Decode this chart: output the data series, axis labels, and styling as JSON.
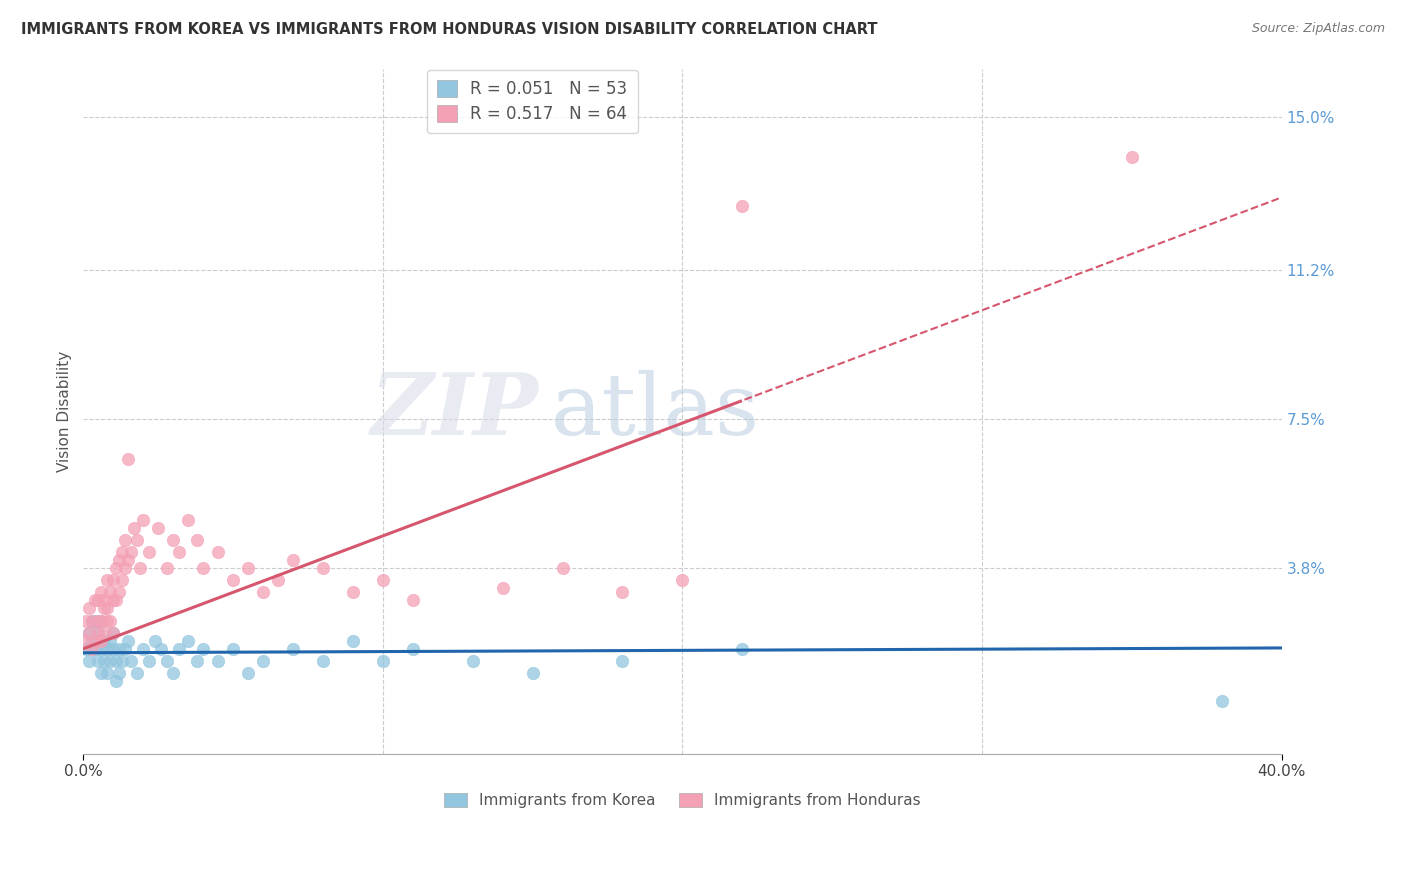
{
  "title": "IMMIGRANTS FROM KOREA VS IMMIGRANTS FROM HONDURAS VISION DISABILITY CORRELATION CHART",
  "source": "Source: ZipAtlas.com",
  "ylabel": "Vision Disability",
  "ytick_values": [
    0.038,
    0.075,
    0.112,
    0.15
  ],
  "ytick_labels": [
    "3.8%",
    "7.5%",
    "11.2%",
    "15.0%"
  ],
  "xlim": [
    0.0,
    0.4
  ],
  "ylim": [
    -0.008,
    0.162
  ],
  "korea_color": "#92c5de",
  "honduras_color": "#f4a0b5",
  "korea_trend_color": "#2166ac",
  "honduras_trend_color": "#d6566e",
  "korea_R": 0.051,
  "korea_N": 53,
  "honduras_R": 0.517,
  "honduras_N": 64,
  "watermark_zip": "ZIP",
  "watermark_atlas": "atlas",
  "legend_label_korea": "Immigrants from Korea",
  "legend_label_honduras": "Immigrants from Honduras",
  "korea_x": [
    0.001,
    0.002,
    0.002,
    0.003,
    0.003,
    0.004,
    0.004,
    0.005,
    0.005,
    0.006,
    0.006,
    0.006,
    0.007,
    0.007,
    0.008,
    0.008,
    0.009,
    0.009,
    0.01,
    0.01,
    0.011,
    0.011,
    0.012,
    0.012,
    0.013,
    0.014,
    0.015,
    0.016,
    0.018,
    0.02,
    0.022,
    0.024,
    0.026,
    0.028,
    0.03,
    0.032,
    0.035,
    0.038,
    0.04,
    0.045,
    0.05,
    0.055,
    0.06,
    0.07,
    0.08,
    0.09,
    0.1,
    0.11,
    0.13,
    0.15,
    0.18,
    0.22,
    0.38
  ],
  "korea_y": [
    0.018,
    0.022,
    0.015,
    0.025,
    0.02,
    0.018,
    0.025,
    0.015,
    0.022,
    0.018,
    0.012,
    0.025,
    0.015,
    0.02,
    0.018,
    0.012,
    0.02,
    0.015,
    0.018,
    0.022,
    0.015,
    0.01,
    0.018,
    0.012,
    0.015,
    0.018,
    0.02,
    0.015,
    0.012,
    0.018,
    0.015,
    0.02,
    0.018,
    0.015,
    0.012,
    0.018,
    0.02,
    0.015,
    0.018,
    0.015,
    0.018,
    0.012,
    0.015,
    0.018,
    0.015,
    0.02,
    0.015,
    0.018,
    0.015,
    0.012,
    0.015,
    0.018,
    0.005
  ],
  "honduras_x": [
    0.001,
    0.001,
    0.002,
    0.002,
    0.003,
    0.003,
    0.004,
    0.004,
    0.005,
    0.005,
    0.005,
    0.006,
    0.006,
    0.006,
    0.007,
    0.007,
    0.007,
    0.008,
    0.008,
    0.008,
    0.009,
    0.009,
    0.01,
    0.01,
    0.01,
    0.011,
    0.011,
    0.012,
    0.012,
    0.013,
    0.013,
    0.014,
    0.014,
    0.015,
    0.015,
    0.016,
    0.017,
    0.018,
    0.019,
    0.02,
    0.022,
    0.025,
    0.028,
    0.03,
    0.032,
    0.035,
    0.038,
    0.04,
    0.045,
    0.05,
    0.055,
    0.06,
    0.065,
    0.07,
    0.08,
    0.09,
    0.1,
    0.11,
    0.14,
    0.16,
    0.18,
    0.2,
    0.22,
    0.35
  ],
  "honduras_y": [
    0.02,
    0.025,
    0.022,
    0.028,
    0.018,
    0.025,
    0.02,
    0.03,
    0.025,
    0.022,
    0.03,
    0.025,
    0.032,
    0.02,
    0.028,
    0.022,
    0.03,
    0.025,
    0.035,
    0.028,
    0.032,
    0.025,
    0.03,
    0.022,
    0.035,
    0.03,
    0.038,
    0.032,
    0.04,
    0.035,
    0.042,
    0.038,
    0.045,
    0.04,
    0.065,
    0.042,
    0.048,
    0.045,
    0.038,
    0.05,
    0.042,
    0.048,
    0.038,
    0.045,
    0.042,
    0.05,
    0.045,
    0.038,
    0.042,
    0.035,
    0.038,
    0.032,
    0.035,
    0.04,
    0.038,
    0.032,
    0.035,
    0.03,
    0.033,
    0.038,
    0.032,
    0.035,
    0.128,
    0.14
  ],
  "korea_trend_slope": 0.003,
  "korea_trend_intercept": 0.017,
  "honduras_trend_slope": 0.28,
  "honduras_trend_intercept": 0.018,
  "trend_solid_end": 0.22,
  "trend_dashed_start": 0.22
}
